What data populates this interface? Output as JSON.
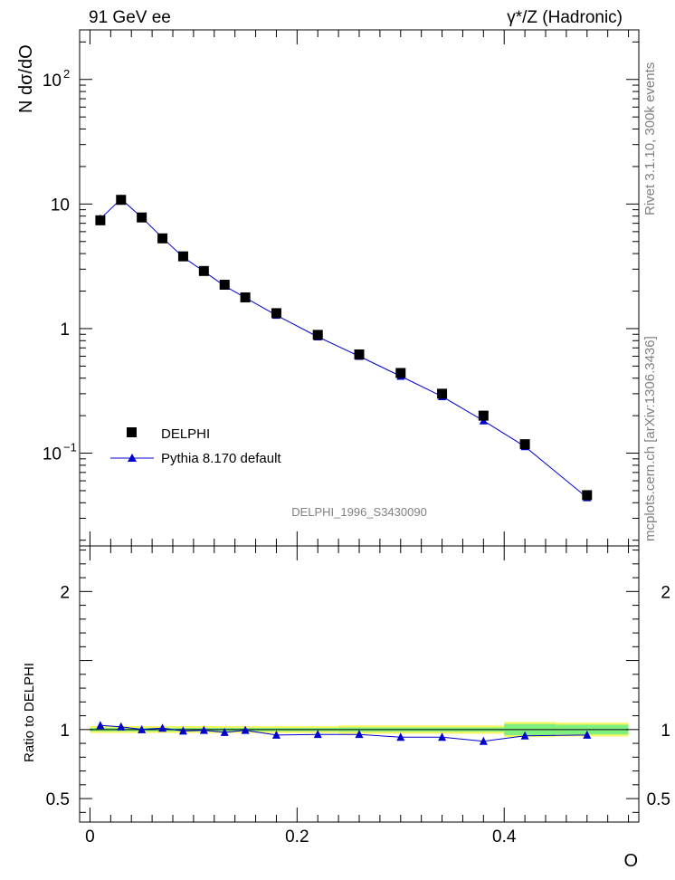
{
  "header": {
    "left": "91 GeV ee",
    "right": "γ*/Z (Hadronic)"
  },
  "side_text": {
    "rivet": "Rivet 3.1.10,  300k events",
    "mcplots": "mcplots.cern.ch [arXiv:1306.3436]"
  },
  "analysis_tag": "DELPHI_1996_S3430090",
  "chart_data": [
    {
      "type": "scatter",
      "panel": "main",
      "ylabel": "N dσ/dO",
      "yscale": "log",
      "ylim": [
        0.018,
        250
      ],
      "xlim": [
        -0.01,
        0.53
      ],
      "y_ticks": [
        {
          "v": 100,
          "label": "10",
          "exp": "2"
        },
        {
          "v": 10,
          "label": "10",
          "exp": ""
        },
        {
          "v": 1,
          "label": "1",
          "exp": ""
        },
        {
          "v": 0.1,
          "label": "10",
          "exp": "−1"
        }
      ],
      "legend_position": "center-left",
      "series": [
        {
          "name": "DELPHI",
          "marker": "square",
          "color": "#000000",
          "x": [
            0.01,
            0.03,
            0.05,
            0.07,
            0.09,
            0.11,
            0.13,
            0.15,
            0.18,
            0.22,
            0.26,
            0.3,
            0.34,
            0.38,
            0.42,
            0.48
          ],
          "y": [
            7.4,
            10.8,
            7.8,
            5.3,
            3.8,
            2.9,
            2.25,
            1.78,
            1.33,
            0.89,
            0.62,
            0.44,
            0.3,
            0.2,
            0.118,
            0.046
          ]
        },
        {
          "name": "Pythia 8.170 default",
          "marker": "triangle",
          "color": "#0000cc",
          "x": [
            0.01,
            0.03,
            0.05,
            0.07,
            0.09,
            0.11,
            0.13,
            0.15,
            0.18,
            0.22,
            0.26,
            0.3,
            0.34,
            0.38,
            0.42,
            0.48
          ],
          "y": [
            7.6,
            11.0,
            7.8,
            5.35,
            3.75,
            2.88,
            2.2,
            1.77,
            1.28,
            0.86,
            0.6,
            0.415,
            0.285,
            0.182,
            0.113,
            0.044
          ]
        }
      ]
    },
    {
      "type": "line",
      "panel": "ratio",
      "ylabel": "Ratio to DELPHI",
      "xlabel": "O",
      "ylim": [
        0.33,
        2.33
      ],
      "xlim": [
        -0.01,
        0.53
      ],
      "y_ticks": [
        {
          "v": 0.5,
          "label": "0.5"
        },
        {
          "v": 1,
          "label": "1"
        },
        {
          "v": 2,
          "label": "2"
        }
      ],
      "x_ticks": [
        {
          "v": 0,
          "label": "0"
        },
        {
          "v": 0.2,
          "label": "0.2"
        },
        {
          "v": 0.4,
          "label": "0.4"
        }
      ],
      "band_colors": {
        "outer": "#f5f564",
        "inner": "#7ff07f"
      },
      "bands": [
        {
          "x0": 0.0,
          "x1": 0.24,
          "outer": 0.025,
          "inner": 0.012
        },
        {
          "x0": 0.24,
          "x1": 0.4,
          "outer": 0.03,
          "inner": 0.015
        },
        {
          "x0": 0.4,
          "x1": 0.45,
          "outer": 0.055,
          "inner": 0.04
        },
        {
          "x0": 0.45,
          "x1": 0.52,
          "outer": 0.05,
          "inner": 0.035
        }
      ],
      "series": [
        {
          "name": "Pythia 8.170 default",
          "color": "#0000cc",
          "x": [
            0.01,
            0.03,
            0.05,
            0.07,
            0.09,
            0.11,
            0.13,
            0.15,
            0.18,
            0.22,
            0.26,
            0.3,
            0.34,
            0.38,
            0.42,
            0.48
          ],
          "y": [
            1.03,
            1.02,
            1.0,
            1.01,
            0.99,
            0.995,
            0.98,
            0.995,
            0.96,
            0.965,
            0.965,
            0.945,
            0.945,
            0.915,
            0.955,
            0.96
          ],
          "err": [
            0.012,
            0.008,
            0.008,
            0.008,
            0.008,
            0.008,
            0.008,
            0.008,
            0.008,
            0.008,
            0.01,
            0.01,
            0.012,
            0.015,
            0.02,
            0.025
          ]
        }
      ]
    }
  ]
}
